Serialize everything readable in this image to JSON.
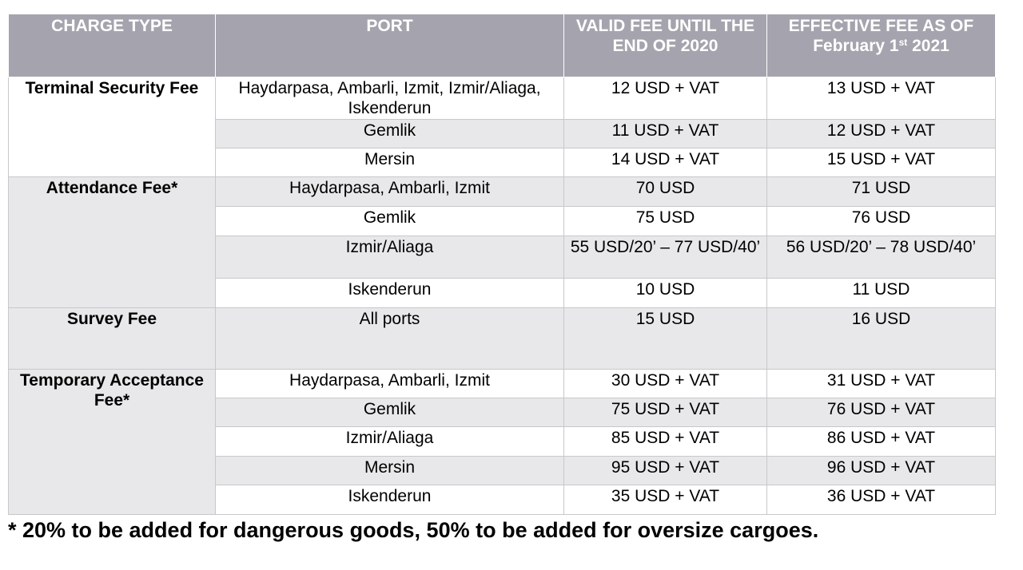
{
  "table": {
    "headers": {
      "charge_type": "CHARGE TYPE",
      "port": "PORT",
      "valid_fee": "VALID FEE UNTIL THE END OF 2020",
      "effective_fee_prefix": "EFFECTIVE FEE AS OF February 1",
      "effective_fee_sup": "st",
      "effective_fee_suffix": "2021"
    },
    "groups": [
      {
        "charge": "Terminal Security Fee",
        "rows": [
          {
            "port": "Haydarpasa, Ambarli, Izmit, Izmir/Aliaga, Iskenderun",
            "valid": "12 USD + VAT",
            "effective": "13 USD + VAT"
          },
          {
            "port": "Gemlik",
            "valid": "11 USD + VAT",
            "effective": "12 USD + VAT"
          },
          {
            "port": "Mersin",
            "valid": "14 USD + VAT",
            "effective": "15 USD + VAT"
          }
        ]
      },
      {
        "charge": "Attendance Fee*",
        "rows": [
          {
            "port": "Haydarpasa, Ambarli, Izmit",
            "valid": "70 USD",
            "effective": "71 USD"
          },
          {
            "port": "Gemlik",
            "valid": "75 USD",
            "effective": "76 USD"
          },
          {
            "port": "Izmir/Aliaga",
            "valid": "55 USD/20’ – 77 USD/40’",
            "effective": "56 USD/20’ – 78 USD/40’"
          },
          {
            "port": "Iskenderun",
            "valid": "10 USD",
            "effective": "11 USD"
          }
        ]
      },
      {
        "charge": "Survey Fee",
        "rows": [
          {
            "port": "All ports",
            "valid": "15 USD",
            "effective": "16 USD"
          }
        ]
      },
      {
        "charge": "Temporary Acceptance Fee*",
        "rows": [
          {
            "port": "Haydarpasa, Ambarli, Izmit",
            "valid": "30 USD + VAT",
            "effective": "31 USD + VAT"
          },
          {
            "port": "Gemlik",
            "valid": "75 USD + VAT",
            "effective": "76 USD + VAT"
          },
          {
            "port": "Izmir/Aliaga",
            "valid": "85 USD + VAT",
            "effective": "86 USD + VAT"
          },
          {
            "port": "Mersin",
            "valid": "95 USD + VAT",
            "effective": "96 USD + VAT"
          },
          {
            "port": "Iskenderun",
            "valid": "35 USD + VAT",
            "effective": "36 USD + VAT"
          }
        ]
      }
    ]
  },
  "footnote": "* 20% to be added for dangerous goods, 50% to be added for oversize cargoes.",
  "colors": {
    "header_bg": "#a5a4ae",
    "row_grey": "#e8e8ea",
    "row_white": "#ffffff"
  }
}
